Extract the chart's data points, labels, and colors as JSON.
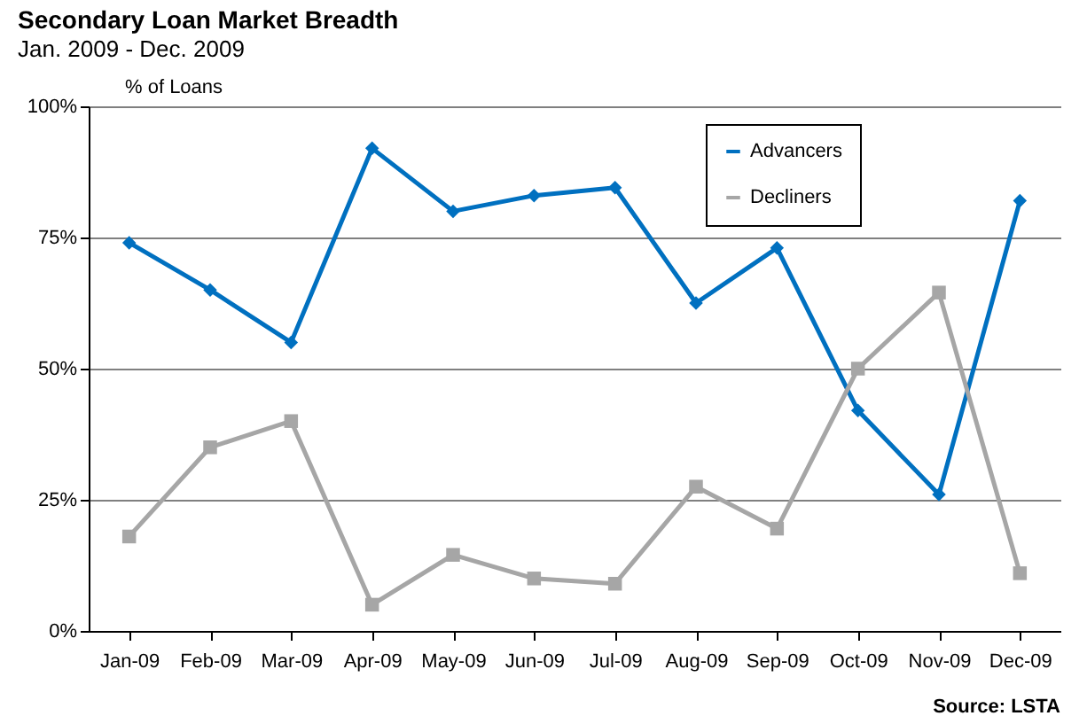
{
  "chart_data": {
    "type": "line",
    "title": "Secondary Loan Market Breadth",
    "subtitle": "Jan. 2009 - Dec. 2009",
    "ylabel": "% of Loans",
    "categories": [
      "Jan-09",
      "Feb-09",
      "Mar-09",
      "Apr-09",
      "May-09",
      "Jun-09",
      "Jul-09",
      "Aug-09",
      "Sep-09",
      "Oct-09",
      "Nov-09",
      "Dec-09"
    ],
    "series": [
      {
        "name": "Advancers",
        "color": "#0070c0",
        "marker": "diamond",
        "values": [
          74,
          65,
          55,
          92,
          80,
          83,
          84.5,
          62.5,
          73,
          42,
          26,
          82
        ]
      },
      {
        "name": "Decliners",
        "color": "#a6a6a6",
        "marker": "square",
        "values": [
          18,
          35,
          40,
          5,
          14.5,
          10,
          9,
          27.5,
          19.5,
          50,
          64.5,
          11
        ]
      }
    ],
    "ylim": [
      0,
      100
    ],
    "yticks": [
      {
        "value": 0,
        "label": "0%"
      },
      {
        "value": 25,
        "label": "25%"
      },
      {
        "value": 50,
        "label": "50%"
      },
      {
        "value": 75,
        "label": "75%"
      },
      {
        "value": 100,
        "label": "100%"
      }
    ],
    "grid": "y",
    "legend": "top right",
    "line_style": "solid",
    "annotations": [
      "Source: LSTA"
    ]
  }
}
